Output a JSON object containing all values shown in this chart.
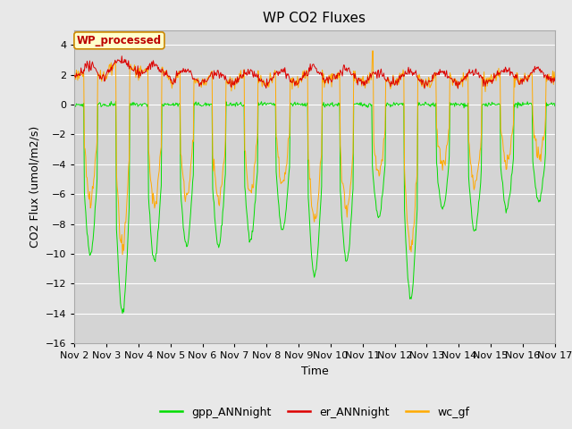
{
  "title": "WP CO2 Fluxes",
  "xlabel": "Time",
  "ylabel_display": "CO2 Flux (umol/m2/s)",
  "ylim": [
    -16,
    5
  ],
  "yticks": [
    -16,
    -14,
    -12,
    -10,
    -8,
    -6,
    -4,
    -2,
    0,
    2,
    4
  ],
  "n_days": 15,
  "pts_per_day": 48,
  "colors": {
    "gpp": "#00dd00",
    "er": "#dd0000",
    "wc": "#ffaa00"
  },
  "legend_label": "WP_processed",
  "legend_facecolor": "#ffffcc",
  "legend_edgecolor": "#cc8800",
  "series_labels": [
    "gpp_ANNnight",
    "er_ANNnight",
    "wc_gf"
  ],
  "fig_facecolor": "#e8e8e8",
  "plot_bg_color": "#d4d4d4",
  "grid_color": "#ffffff",
  "title_fontsize": 11,
  "label_fontsize": 9,
  "tick_fontsize": 8,
  "linewidth": 0.7
}
